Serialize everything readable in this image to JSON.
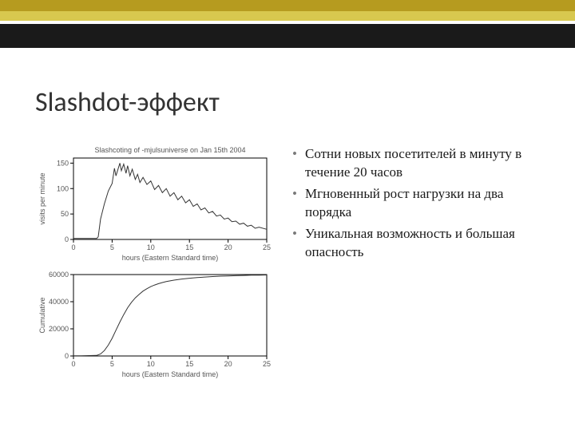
{
  "title": "Slashdot-эффект",
  "bullets": [
    "Сотни новых посетителей в минуту в течение 20 часов",
    "Мгновенный рост нагрузки на два порядка",
    "Уникальная возможность и большая опасность"
  ],
  "chart_top": {
    "type": "line",
    "title": "Slashcoting of -mjulsuniverse on Jan 15th 2004",
    "xlabel": "hours (Eastern Standard time)",
    "ylabel": "visits per minute",
    "xlim": [
      0,
      25
    ],
    "ylim": [
      0,
      160
    ],
    "xticks": [
      0,
      5,
      10,
      15,
      20,
      25
    ],
    "yticks": [
      0,
      50,
      100,
      150
    ],
    "line_color": "#333333",
    "grid_color": "#000000",
    "background_color": "#ffffff",
    "tick_fontsize": 9,
    "label_fontsize": 9,
    "series": [
      [
        0,
        2
      ],
      [
        1,
        2
      ],
      [
        2,
        2
      ],
      [
        3,
        2
      ],
      [
        3.2,
        5
      ],
      [
        3.5,
        40
      ],
      [
        4,
        70
      ],
      [
        4.5,
        95
      ],
      [
        5,
        110
      ],
      [
        5.3,
        140
      ],
      [
        5.5,
        125
      ],
      [
        6,
        150
      ],
      [
        6.2,
        135
      ],
      [
        6.5,
        148
      ],
      [
        6.8,
        130
      ],
      [
        7,
        145
      ],
      [
        7.3,
        125
      ],
      [
        7.6,
        138
      ],
      [
        8,
        118
      ],
      [
        8.3,
        128
      ],
      [
        8.6,
        112
      ],
      [
        9,
        122
      ],
      [
        9.5,
        108
      ],
      [
        10,
        115
      ],
      [
        10.5,
        98
      ],
      [
        11,
        106
      ],
      [
        11.5,
        92
      ],
      [
        12,
        100
      ],
      [
        12.5,
        85
      ],
      [
        13,
        92
      ],
      [
        13.5,
        78
      ],
      [
        14,
        85
      ],
      [
        14.5,
        72
      ],
      [
        15,
        78
      ],
      [
        15.5,
        65
      ],
      [
        16,
        70
      ],
      [
        16.5,
        58
      ],
      [
        17,
        62
      ],
      [
        17.5,
        52
      ],
      [
        18,
        55
      ],
      [
        18.5,
        46
      ],
      [
        19,
        48
      ],
      [
        19.5,
        40
      ],
      [
        20,
        42
      ],
      [
        20.5,
        35
      ],
      [
        21,
        36
      ],
      [
        21.5,
        30
      ],
      [
        22,
        32
      ],
      [
        22.5,
        26
      ],
      [
        23,
        28
      ],
      [
        23.5,
        22
      ],
      [
        24,
        24
      ],
      [
        25,
        20
      ]
    ]
  },
  "chart_bottom": {
    "type": "line",
    "xlabel": "hours (Eastern Standard time)",
    "ylabel": "Cumulative",
    "xlim": [
      0,
      25
    ],
    "ylim": [
      0,
      60000
    ],
    "xticks": [
      0,
      5,
      10,
      15,
      20,
      25
    ],
    "yticks": [
      0,
      20000,
      40000,
      60000
    ],
    "line_color": "#333333",
    "grid_color": "#000000",
    "background_color": "#ffffff",
    "tick_fontsize": 9,
    "label_fontsize": 9,
    "series": [
      [
        0,
        100
      ],
      [
        1,
        200
      ],
      [
        2,
        300
      ],
      [
        3,
        400
      ],
      [
        3.5,
        1500
      ],
      [
        4,
        4000
      ],
      [
        4.5,
        8000
      ],
      [
        5,
        13000
      ],
      [
        5.5,
        19000
      ],
      [
        6,
        25000
      ],
      [
        6.5,
        30500
      ],
      [
        7,
        35500
      ],
      [
        7.5,
        39500
      ],
      [
        8,
        42800
      ],
      [
        8.5,
        45500
      ],
      [
        9,
        47800
      ],
      [
        9.5,
        49600
      ],
      [
        10,
        51100
      ],
      [
        10.5,
        52300
      ],
      [
        11,
        53300
      ],
      [
        11.5,
        54100
      ],
      [
        12,
        54800
      ],
      [
        13,
        55900
      ],
      [
        14,
        56700
      ],
      [
        15,
        57300
      ],
      [
        16,
        57800
      ],
      [
        17,
        58200
      ],
      [
        18,
        58500
      ],
      [
        19,
        58800
      ],
      [
        20,
        59000
      ],
      [
        21,
        59200
      ],
      [
        22,
        59350
      ],
      [
        23,
        59500
      ],
      [
        24,
        59600
      ],
      [
        25,
        59700
      ]
    ]
  }
}
